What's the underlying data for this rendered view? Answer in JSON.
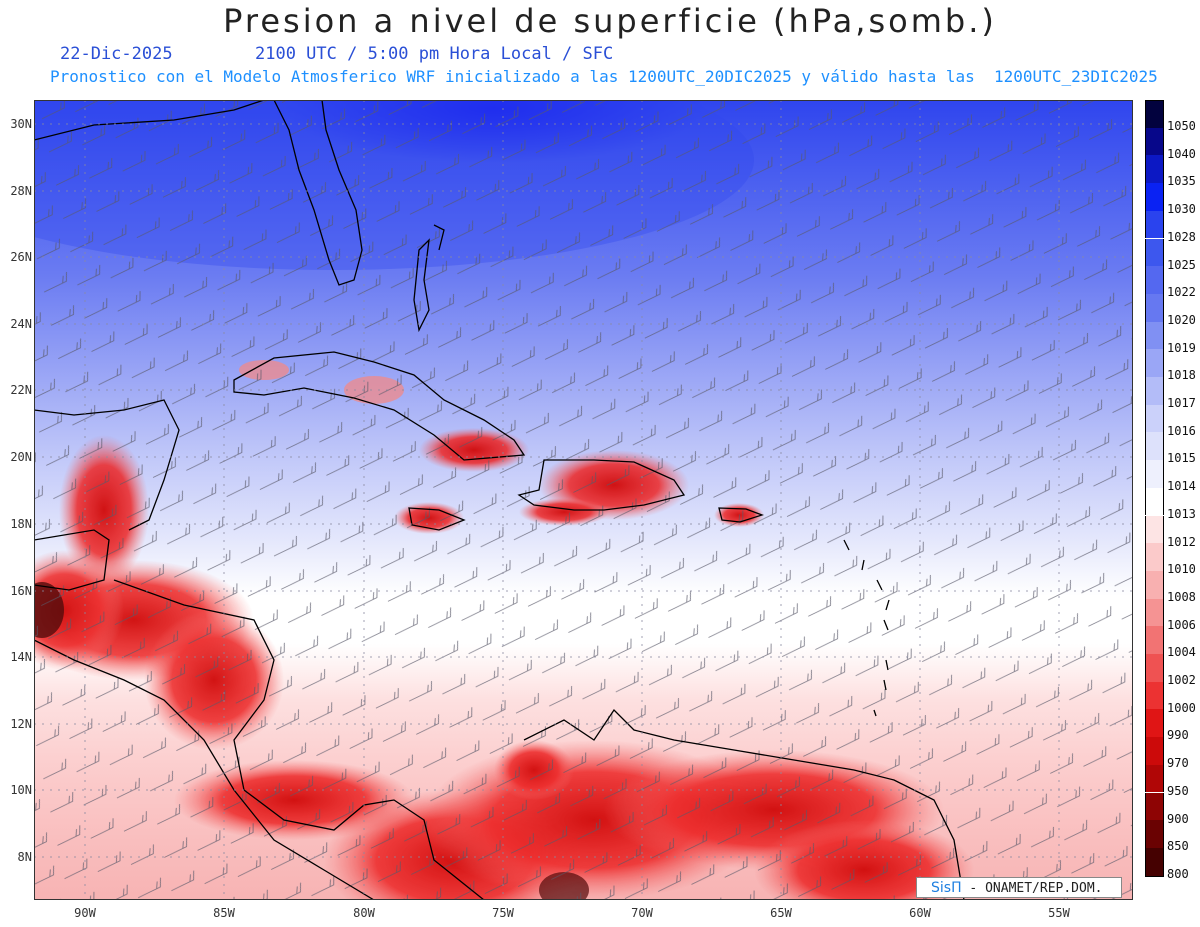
{
  "title": "Presion a nivel de superficie (hPa,somb.)",
  "date": "22-Dic-2025",
  "valid_time": "2100 UTC / 5:00 pm Hora Local / SFC",
  "model_line": "Pronostico con el Modelo Atmosferico WRF inicializado a las 1200UTC_20DIC2025 y válido hasta las  1200UTC_23DIC2025",
  "lat_labels": [
    "30N",
    "28N",
    "26N",
    "24N",
    "22N",
    "20N",
    "18N",
    "16N",
    "14N",
    "12N",
    "10N",
    "8N"
  ],
  "lon_labels": [
    "90W",
    "85W",
    "80W",
    "75W",
    "70W",
    "65W",
    "60W",
    "55W"
  ],
  "colorbar": {
    "labels": [
      "1050",
      "1040",
      "1035",
      "1030",
      "1028",
      "1025",
      "1022",
      "1020",
      "1019",
      "1018",
      "1017",
      "1016",
      "1015",
      "1014",
      "1013",
      "1012",
      "1010",
      "1008",
      "1006",
      "1004",
      "1002",
      "1000",
      "990",
      "970",
      "950",
      "900",
      "850",
      "800"
    ],
    "colors": [
      "#02023e",
      "#07078a",
      "#0c18c4",
      "#0a22f3",
      "#2a43ee",
      "#3d57ee",
      "#5468f0",
      "#6678f1",
      "#8090f3",
      "#9aa6f6",
      "#b3bcf8",
      "#cbd1fa",
      "#dde1fb",
      "#eef0fd",
      "#ffffff",
      "#fde4e4",
      "#fbcaca",
      "#f8b0b0",
      "#f59393",
      "#f27373",
      "#ef5252",
      "#ec3232",
      "#e01515",
      "#cc0a0a",
      "#b00606",
      "#8e0404",
      "#6a0202",
      "#450101"
    ]
  },
  "logo": {
    "brand": "SisΠ",
    "text": " - ONAMET/REP.DOM."
  }
}
